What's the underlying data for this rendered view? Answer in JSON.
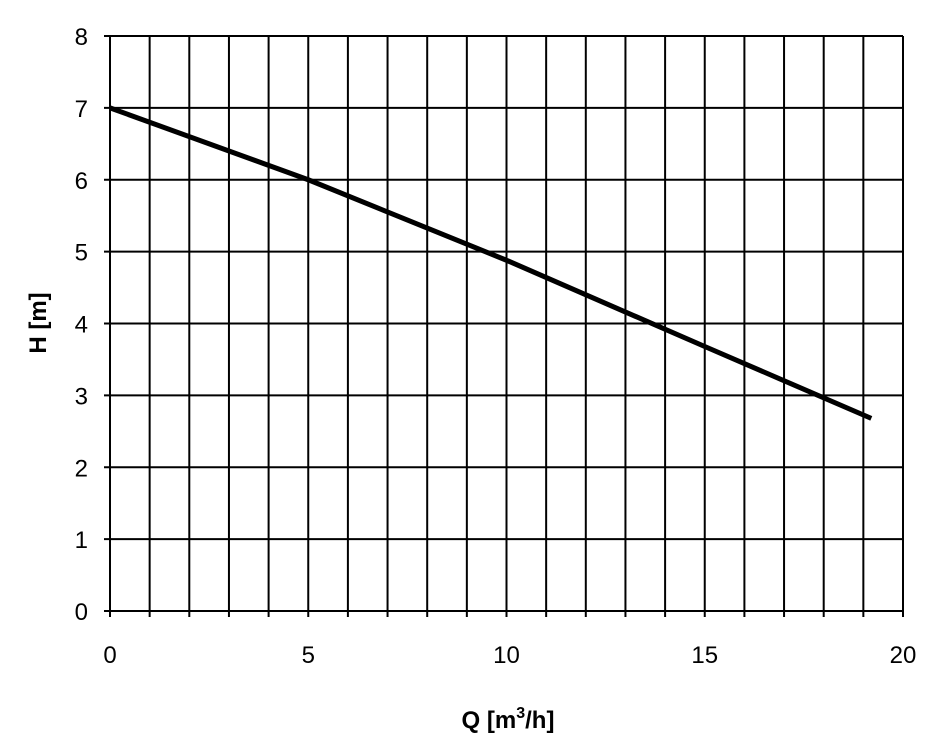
{
  "chart_data": {
    "type": "line",
    "title": "",
    "xlabel": "Q [m3/h]",
    "xlabel_main": "Q [m",
    "xlabel_sup": "3",
    "xlabel_tail": "/h]",
    "ylabel": "H [m]",
    "xlim": [
      0,
      20
    ],
    "ylim": [
      0,
      8
    ],
    "x_ticks": [
      "0",
      "5",
      "10",
      "15",
      "20"
    ],
    "y_ticks": [
      "0",
      "1",
      "2",
      "3",
      "4",
      "5",
      "6",
      "7",
      "8"
    ],
    "x_tick_values": [
      0,
      5,
      10,
      15,
      20
    ],
    "y_tick_values": [
      0,
      1,
      2,
      3,
      4,
      5,
      6,
      7,
      8
    ],
    "grid": true,
    "x_grid_step": 1,
    "y_grid_step": 1,
    "legend": "none",
    "series": [
      {
        "x": [
          0,
          5,
          10,
          15,
          19.2
        ],
        "y": [
          7.0,
          6.0,
          4.88,
          3.68,
          2.68
        ]
      }
    ],
    "colors": {
      "line": "#000000",
      "grid": "#000000",
      "background": "#ffffff"
    }
  }
}
